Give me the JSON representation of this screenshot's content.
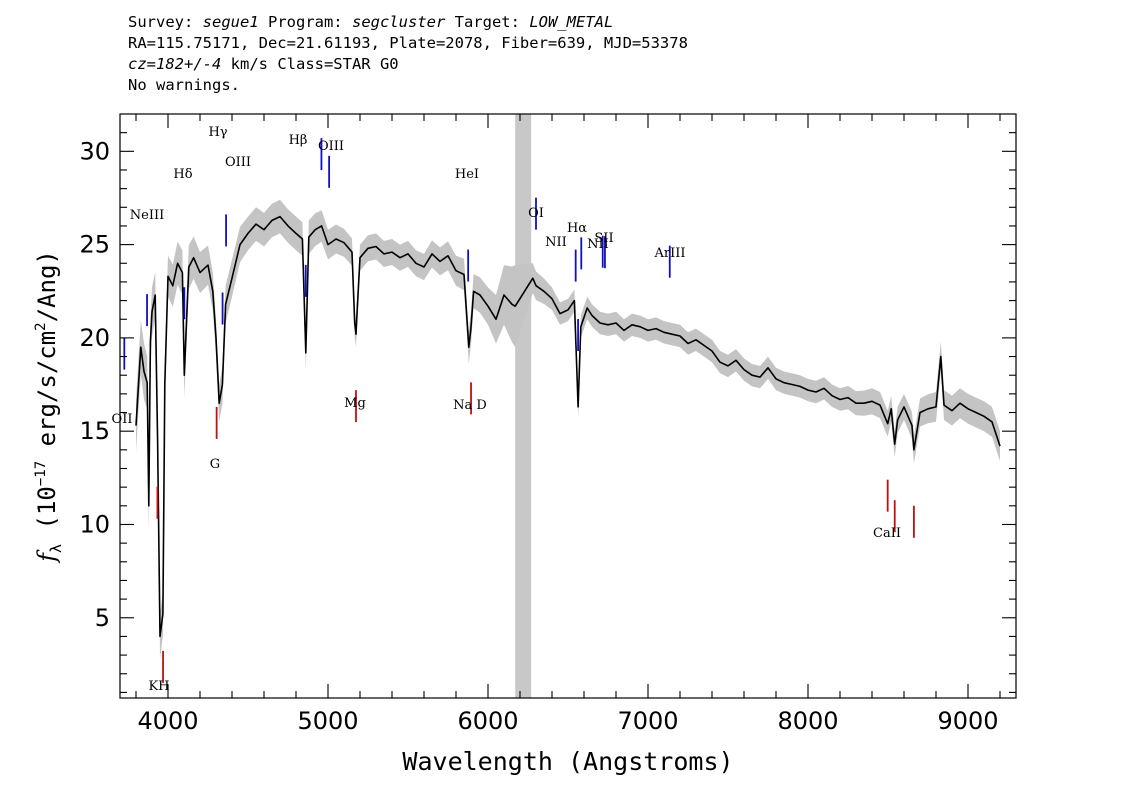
{
  "header": {
    "survey_label": "Survey: ",
    "survey_value": "segue1",
    "program_label": " Program: ",
    "program_value": "segcluster",
    "target_label": " Target: ",
    "target_value": "LOW_METAL",
    "line2": "RA=115.75171, Dec=21.61193, Plate=2078, Fiber=639, MJD=53378",
    "cz_value": "cz=182+/-4",
    "line3_rest": " km/s Class=STAR G0",
    "line4": "No warnings."
  },
  "chart_data": {
    "type": "line",
    "xlabel": "Wavelength (Angstroms)",
    "ylabel": "f_λ (10^-17 erg/s/cm^2/Ang)",
    "ylabel_parts": {
      "f": "f",
      "lambda": "λ",
      "open": " (10",
      "exp1": "−17",
      "mid": " erg/s/cm",
      "exp2": "2",
      "close": "/Ang)"
    },
    "xlim": [
      3700,
      9300
    ],
    "ylim": [
      0.7,
      32
    ],
    "x_ticks": [
      4000,
      5000,
      6000,
      7000,
      8000,
      9000
    ],
    "x_tick_labels": [
      "4000",
      "5000",
      "6000",
      "7000",
      "8000",
      "9000"
    ],
    "y_ticks": [
      5,
      10,
      15,
      20,
      25,
      30
    ],
    "y_tick_labels": [
      "5",
      "10",
      "15",
      "20",
      "25",
      "30"
    ],
    "masked_region": [
      6170,
      6270
    ],
    "colors": {
      "flux": "#000000",
      "error_band": "#c4c4c4",
      "mask": "#c8c8c8",
      "emission_line": "#1010c0",
      "absorption_line": "#c01010"
    },
    "series": [
      {
        "role": "flux",
        "x": [
          3800,
          3830,
          3850,
          3870,
          3880,
          3890,
          3900,
          3920,
          3935,
          3950,
          3968,
          3980,
          4000,
          4030,
          4060,
          4090,
          4102,
          4130,
          4160,
          4200,
          4250,
          4280,
          4300,
          4320,
          4340,
          4360,
          4400,
          4450,
          4500,
          4550,
          4600,
          4650,
          4700,
          4750,
          4800,
          4840,
          4861,
          4880,
          4920,
          4960,
          5000,
          5050,
          5100,
          5150,
          5167,
          5175,
          5183,
          5200,
          5250,
          5300,
          5350,
          5400,
          5450,
          5500,
          5550,
          5600,
          5650,
          5700,
          5750,
          5800,
          5850,
          5880,
          5893,
          5910,
          5950,
          6000,
          6050,
          6100,
          6150,
          6170,
          6280,
          6300,
          6350,
          6400,
          6450,
          6500,
          6540,
          6563,
          6580,
          6620,
          6650,
          6700,
          6750,
          6800,
          6850,
          6900,
          6950,
          7000,
          7050,
          7100,
          7150,
          7200,
          7250,
          7300,
          7350,
          7400,
          7450,
          7500,
          7550,
          7600,
          7650,
          7700,
          7750,
          7800,
          7850,
          7900,
          7950,
          8000,
          8050,
          8100,
          8150,
          8200,
          8250,
          8300,
          8350,
          8400,
          8450,
          8498,
          8520,
          8542,
          8560,
          8600,
          8650,
          8662,
          8700,
          8750,
          8800,
          8830,
          8850,
          8900,
          8950,
          9000,
          9050,
          9100,
          9150,
          9200
        ],
        "y": [
          15.3,
          19.5,
          18.2,
          17.6,
          11.0,
          19.8,
          21.4,
          22.3,
          14.5,
          4.0,
          5.2,
          17.5,
          23.3,
          22.8,
          24.0,
          23.5,
          18.0,
          23.8,
          24.3,
          23.5,
          23.9,
          22.5,
          20.0,
          16.5,
          17.5,
          21.8,
          23.2,
          25.0,
          25.6,
          26.1,
          25.8,
          26.3,
          26.5,
          26.0,
          25.6,
          25.3,
          19.2,
          25.4,
          25.8,
          26.0,
          25.0,
          25.3,
          25.1,
          24.6,
          20.8,
          20.2,
          21.6,
          24.3,
          24.8,
          24.9,
          24.5,
          24.6,
          24.3,
          24.5,
          24.0,
          23.8,
          24.5,
          24.1,
          24.4,
          23.6,
          23.4,
          19.5,
          20.5,
          22.5,
          22.3,
          21.7,
          21.0,
          22.3,
          21.8,
          21.7,
          23.2,
          22.8,
          22.5,
          22.1,
          21.3,
          21.5,
          22.0,
          16.3,
          20.6,
          21.6,
          21.2,
          20.8,
          20.7,
          20.8,
          20.4,
          20.7,
          20.6,
          20.4,
          20.5,
          20.3,
          20.2,
          20.1,
          19.7,
          19.9,
          19.6,
          19.3,
          18.7,
          18.5,
          18.8,
          18.3,
          18.0,
          17.9,
          18.4,
          17.8,
          17.6,
          17.5,
          17.4,
          17.2,
          17.1,
          17.3,
          16.9,
          16.7,
          16.8,
          16.5,
          16.5,
          16.6,
          16.4,
          15.4,
          16.2,
          14.3,
          15.6,
          16.3,
          15.3,
          14.0,
          16.0,
          16.2,
          16.3,
          19.0,
          16.4,
          16.1,
          16.5,
          16.2,
          16.0,
          15.8,
          15.5,
          14.2
        ]
      },
      {
        "role": "error_band",
        "x": [
          3800,
          3850,
          3900,
          3950,
          4000,
          4100,
          4200,
          4300,
          4400,
          4500,
          4600,
          4700,
          4800,
          4900,
          5000,
          5200,
          5400,
          5600,
          5800,
          6000,
          6100,
          6170,
          6280,
          6400,
          6600,
          6800,
          7000,
          7200,
          7400,
          7600,
          7800,
          8000,
          8200,
          8400,
          8600,
          8800,
          9000,
          9200
        ],
        "err": [
          1.4,
          1.5,
          1.3,
          1.2,
          1.1,
          1.2,
          1.1,
          1.0,
          1.0,
          0.9,
          0.9,
          0.9,
          0.9,
          0.9,
          0.8,
          0.7,
          0.7,
          0.7,
          0.8,
          1.0,
          1.6,
          2.2,
          0.8,
          0.6,
          0.6,
          0.6,
          0.6,
          0.6,
          0.6,
          0.6,
          0.6,
          0.6,
          0.6,
          0.7,
          0.7,
          0.8,
          0.8,
          0.8
        ]
      }
    ],
    "line_markers": {
      "emission": [
        {
          "name": "OII",
          "wave": 3727
        },
        {
          "name": "NeIII",
          "wave": 3869
        },
        {
          "name": "Hδ",
          "wave": 4102
        },
        {
          "name": "Hγ",
          "wave": 4341
        },
        {
          "name": "OIII",
          "wave": 4363
        },
        {
          "name": "Hβ",
          "wave": 4861
        },
        {
          "name": "OIII",
          "wave": 4959
        },
        {
          "name": "OIII",
          "wave": 5007
        },
        {
          "name": "HeI",
          "wave": 5876
        },
        {
          "name": "OI",
          "wave": 6300
        },
        {
          "name": "NII",
          "wave": 6548
        },
        {
          "name": "Hα",
          "wave": 6563
        },
        {
          "name": "NII",
          "wave": 6583
        },
        {
          "name": "SII",
          "wave": 6717
        },
        {
          "name": "SII",
          "wave": 6731
        },
        {
          "name": "ArIII",
          "wave": 7136
        }
      ],
      "absorption": [
        {
          "name": "K",
          "wave": 3934
        },
        {
          "name": "H",
          "wave": 3969
        },
        {
          "name": "G",
          "wave": 4304
        },
        {
          "name": "Mg",
          "wave": 5175
        },
        {
          "name": "Na D",
          "wave": 5894
        },
        {
          "name": "CaII",
          "wave": 8498
        },
        {
          "name": "CaII",
          "wave": 8542
        },
        {
          "name": "CaII",
          "wave": 8662
        }
      ]
    },
    "marker_labels": {
      "oii": "OII",
      "neiii": "NeIII",
      "hdelta": "Hδ",
      "hgamma": "Hγ",
      "oiii_a": "OIII",
      "hbeta": "Hβ",
      "oiii_b": "OIII",
      "hei": "HeI",
      "oi": "OI",
      "nii": "NII",
      "halpha": "Hα",
      "nii_b": "NII",
      "sii": "SII",
      "ariii": "ArIII",
      "kh": "KH",
      "g": "G",
      "mg": "Mg",
      "nad": "Na D",
      "caii": "CaII"
    }
  }
}
